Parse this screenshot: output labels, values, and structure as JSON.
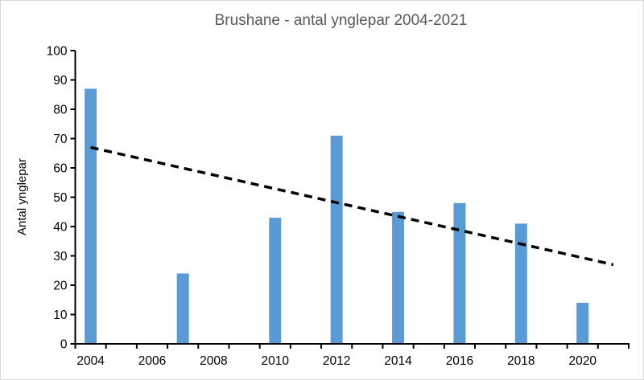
{
  "title": "Brushane - antal ynglepar 2004-2021",
  "colors": {
    "bar": "#5B9BD5",
    "title_text": "#595959",
    "axis_text": "#000000",
    "axis_line": "#000000",
    "trendline": "#000000",
    "chart_border": "#D9D9D9",
    "background": "#FFFFFF"
  },
  "chart_data": {
    "type": "bar",
    "title": "Brushane - antal ynglepar 2004-2021",
    "xlabel": "",
    "ylabel": "Antal ynglepar",
    "categories": [
      2004,
      2005,
      2006,
      2007,
      2008,
      2009,
      2010,
      2011,
      2012,
      2013,
      2014,
      2015,
      2016,
      2017,
      2018,
      2019,
      2020,
      2021
    ],
    "values": [
      87,
      null,
      null,
      24,
      null,
      null,
      43,
      null,
      71,
      null,
      45,
      null,
      48,
      null,
      41,
      null,
      14,
      null
    ],
    "ylim": [
      0,
      100
    ],
    "y_tick_interval": 10,
    "y_tick_labels": [
      "0",
      "10",
      "20",
      "30",
      "40",
      "50",
      "60",
      "70",
      "80",
      "90",
      "100"
    ],
    "x_tick_labels": [
      "2004",
      "2006",
      "2008",
      "2010",
      "2012",
      "2014",
      "2016",
      "2018",
      "2020"
    ],
    "grid": false,
    "legend": "none",
    "trendline": {
      "type": "linear",
      "style": "dashed",
      "color": "#000000",
      "from": {
        "x": 2004,
        "value": 67
      },
      "to": {
        "x": 2021,
        "value": 27
      }
    }
  }
}
